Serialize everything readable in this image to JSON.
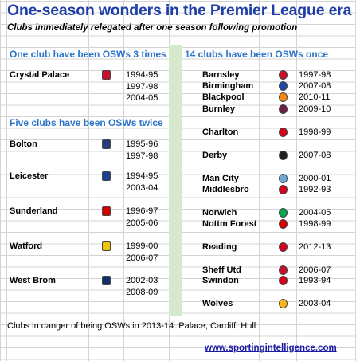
{
  "title": "One-season wonders in the Premier League era",
  "subtitle": "Clubs immediately relegated after one season following promotion",
  "left_header_1": "One club have been OSWs 3 times",
  "left_header_2": "Five clubs have been OSWs twice",
  "right_header": "14 clubs have been OSWs once",
  "left_clubs": [
    {
      "name": "Crystal Palace",
      "seasons": [
        "1994-95",
        "1997-98",
        "2004-05"
      ],
      "icon": "crystal-palace-badge",
      "color": "#c8102e"
    },
    {
      "name": "Bolton",
      "seasons": [
        "1995-96",
        "1997-98"
      ],
      "icon": "bolton-badge",
      "color": "#263c7e"
    },
    {
      "name": "Leicester",
      "seasons": [
        "1994-95",
        "2003-04"
      ],
      "icon": "leicester-badge",
      "color": "#1d428a"
    },
    {
      "name": "Sunderland",
      "seasons": [
        "1996-97",
        "2005-06"
      ],
      "icon": "sunderland-badge",
      "color": "#d40000"
    },
    {
      "name": "Watford",
      "seasons": [
        "1999-00",
        "2006-07"
      ],
      "icon": "watford-badge",
      "color": "#f2c500"
    },
    {
      "name": "West Brom",
      "seasons": [
        "2002-03",
        "2008-09"
      ],
      "icon": "west-brom-badge",
      "color": "#122f67"
    }
  ],
  "right_clubs": [
    {
      "name": "Barnsley",
      "season": "1997-98",
      "icon": "barnsley-badge",
      "color": "#c8102e"
    },
    {
      "name": "Birmingham",
      "season": "2007-08",
      "icon": "birmingham-badge",
      "color": "#1c4aa6"
    },
    {
      "name": "Blackpool",
      "season": "2010-11",
      "icon": "blackpool-badge",
      "color": "#f68712"
    },
    {
      "name": "Burnley",
      "season": "2009-10",
      "icon": "burnley-badge",
      "color": "#6c1d45"
    },
    {
      "name": "Charlton",
      "season": "1998-99",
      "icon": "charlton-badge",
      "color": "#d4021d"
    },
    {
      "name": "Derby",
      "season": "2007-08",
      "icon": "derby-badge",
      "color": "#222222"
    },
    {
      "name": "Man City",
      "season": "2000-01",
      "icon": "man-city-badge",
      "color": "#6cabdd"
    },
    {
      "name": "Middlesbro",
      "season": "1992-93",
      "icon": "middlesbrough-badge",
      "color": "#d4021d"
    },
    {
      "name": "Norwich",
      "season": "2004-05",
      "icon": "norwich-badge",
      "color": "#00a650"
    },
    {
      "name": "Nottm Forest",
      "season": "1998-99",
      "icon": "nottm-forest-badge",
      "color": "#dd0000"
    },
    {
      "name": "Reading",
      "season": "2012-13",
      "icon": "reading-badge",
      "color": "#d4021d"
    },
    {
      "name": "Sheff Utd",
      "season": "2006-07",
      "icon": "sheff-utd-badge",
      "color": "#c8102e"
    },
    {
      "name": "Swindon",
      "season": "1993-94",
      "icon": "swindon-badge",
      "color": "#d4021d"
    },
    {
      "name": "Wolves",
      "season": "2003-04",
      "icon": "wolves-badge",
      "color": "#fdb913"
    }
  ],
  "footer_note": "Clubs in danger of being OSWs in 2013-14: Palace, Cardiff, Hull",
  "website": "www.sportingintelligence.com",
  "colors": {
    "title": "#1f3fa8",
    "headers": "#2b74c9",
    "green_column": "#d6e9cc",
    "link": "#1a1aa6"
  }
}
